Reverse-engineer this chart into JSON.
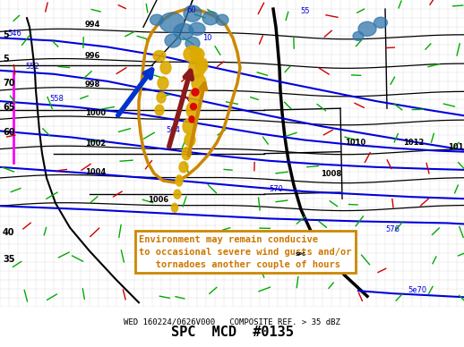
{
  "title": "SPC  MCD  #0135",
  "bottom_label": "WED 160224/0626V000   COMPOSITE REF. > 35 dBZ",
  "annotation_text": "Environment may remain conducive\nto occasional severe wind gusts and/or\n   tornadoes another couple of hours",
  "annotation_color": "#cc7700",
  "annotation_bg": "#ffffff",
  "annotation_border": "#cc7700",
  "bg_color": "#ffffff",
  "title_fontsize": 11,
  "annotation_fontsize": 7.5,
  "fig_width": 5.18,
  "fig_height": 3.88,
  "dpi": 100
}
